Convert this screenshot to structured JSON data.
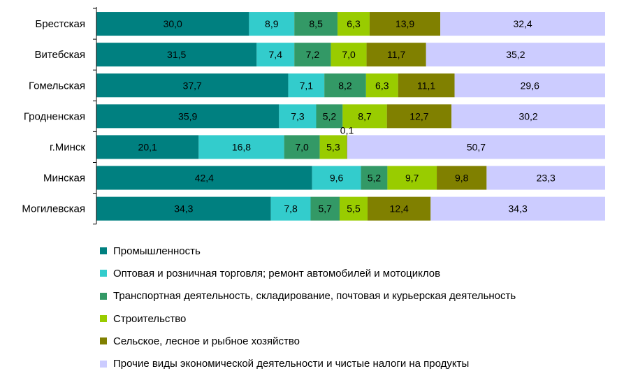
{
  "chart_data": {
    "type": "bar",
    "orientation": "horizontal",
    "stacked": true,
    "title": "",
    "xlabel": "",
    "ylabel": "",
    "xlim": [
      0,
      100
    ],
    "grid": false,
    "legend_position": "bottom",
    "categories": [
      "Брестская",
      "Витебская",
      "Гомельская",
      "Гродненская",
      "г.Минск",
      "Минская",
      "Могилевская"
    ],
    "series": [
      {
        "name": "Промышленность",
        "color": "#008080",
        "values": [
          30.0,
          31.5,
          37.7,
          35.9,
          20.1,
          42.4,
          34.3
        ],
        "labels": [
          "30,0",
          "31,5",
          "37,7",
          "35,9",
          "20,1",
          "42,4",
          "34,3"
        ]
      },
      {
        "name": "Оптовая и розничная торговля; ремонт автомобилей и мотоциклов",
        "color": "#33cccc",
        "values": [
          8.9,
          7.4,
          7.1,
          7.3,
          16.8,
          9.6,
          7.8
        ],
        "labels": [
          "8,9",
          "7,4",
          "7,1",
          "7,3",
          "16,8",
          "9,6",
          "7,8"
        ]
      },
      {
        "name": "Транспортная деятельность, складирование, почтовая и курьерская деятельность",
        "color": "#339966",
        "values": [
          8.5,
          7.2,
          8.2,
          5.2,
          7.0,
          5.2,
          5.7
        ],
        "labels": [
          "8,5",
          "7,2",
          "8,2",
          "5,2",
          "7,0",
          "5,2",
          "5,7"
        ]
      },
      {
        "name": "Строительство",
        "color": "#99cc00",
        "values": [
          6.3,
          7.0,
          6.3,
          8.7,
          5.3,
          9.7,
          5.5
        ],
        "labels": [
          "6,3",
          "7,0",
          "6,3",
          "8,7",
          "5,3",
          "9,7",
          "5,5"
        ]
      },
      {
        "name": "Сельское, лесное и рыбное хозяйство",
        "color": "#808000",
        "values": [
          13.9,
          11.7,
          11.1,
          12.7,
          0.1,
          9.8,
          12.4
        ],
        "labels": [
          "13,9",
          "11,7",
          "11,1",
          "12,7",
          "0,1",
          "9,8",
          "12,4"
        ]
      },
      {
        "name": "Прочие виды экономической деятельности и чистые налоги на продукты",
        "color": "#ccccff",
        "values": [
          32.4,
          35.2,
          29.6,
          30.2,
          50.7,
          23.3,
          34.3
        ],
        "labels": [
          "32,4",
          "35,2",
          "29,6",
          "30,2",
          "50,7",
          "23,3",
          "34,3"
        ]
      }
    ]
  }
}
